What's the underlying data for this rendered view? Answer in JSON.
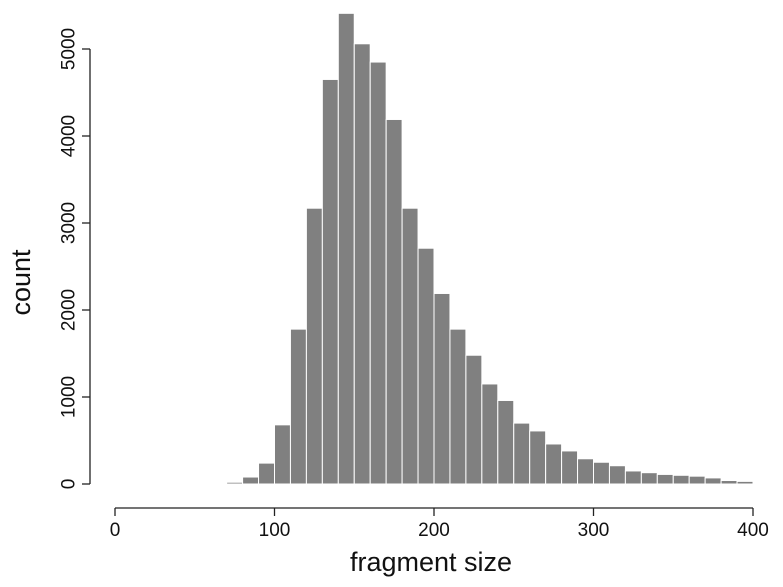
{
  "chart_data": {
    "type": "bar",
    "title": "",
    "xlabel": "fragment size",
    "ylabel": "count",
    "xlim": [
      0,
      400
    ],
    "ylim": [
      0,
      5000
    ],
    "x_ticks": [
      "0",
      "100",
      "200",
      "300",
      "400"
    ],
    "y_ticks": [
      "0",
      "1000",
      "2000",
      "3000",
      "4000",
      "5000"
    ],
    "grid": false,
    "legend": "none",
    "bar_color": "#808080",
    "bin_width": 10,
    "bins": [
      {
        "x0": 60,
        "x1": 70,
        "count": 5
      },
      {
        "x0": 70,
        "x1": 80,
        "count": 20
      },
      {
        "x0": 80,
        "x1": 90,
        "count": 80
      },
      {
        "x0": 90,
        "x1": 100,
        "count": 240
      },
      {
        "x0": 100,
        "x1": 110,
        "count": 680
      },
      {
        "x0": 110,
        "x1": 120,
        "count": 1780
      },
      {
        "x0": 120,
        "x1": 130,
        "count": 3170
      },
      {
        "x0": 130,
        "x1": 140,
        "count": 4650
      },
      {
        "x0": 140,
        "x1": 150,
        "count": 5410
      },
      {
        "x0": 150,
        "x1": 160,
        "count": 5060
      },
      {
        "x0": 160,
        "x1": 170,
        "count": 4850
      },
      {
        "x0": 170,
        "x1": 180,
        "count": 4190
      },
      {
        "x0": 180,
        "x1": 190,
        "count": 3170
      },
      {
        "x0": 190,
        "x1": 200,
        "count": 2710
      },
      {
        "x0": 200,
        "x1": 210,
        "count": 2190
      },
      {
        "x0": 210,
        "x1": 220,
        "count": 1780
      },
      {
        "x0": 220,
        "x1": 230,
        "count": 1480
      },
      {
        "x0": 230,
        "x1": 240,
        "count": 1150
      },
      {
        "x0": 240,
        "x1": 250,
        "count": 960
      },
      {
        "x0": 250,
        "x1": 260,
        "count": 700
      },
      {
        "x0": 260,
        "x1": 270,
        "count": 610
      },
      {
        "x0": 270,
        "x1": 280,
        "count": 460
      },
      {
        "x0": 280,
        "x1": 290,
        "count": 380
      },
      {
        "x0": 290,
        "x1": 300,
        "count": 290
      },
      {
        "x0": 300,
        "x1": 310,
        "count": 250
      },
      {
        "x0": 310,
        "x1": 320,
        "count": 210
      },
      {
        "x0": 320,
        "x1": 330,
        "count": 150
      },
      {
        "x0": 330,
        "x1": 340,
        "count": 130
      },
      {
        "x0": 340,
        "x1": 350,
        "count": 110
      },
      {
        "x0": 350,
        "x1": 360,
        "count": 100
      },
      {
        "x0": 360,
        "x1": 370,
        "count": 90
      },
      {
        "x0": 370,
        "x1": 380,
        "count": 70
      },
      {
        "x0": 380,
        "x1": 390,
        "count": 40
      },
      {
        "x0": 390,
        "x1": 400,
        "count": 30
      }
    ]
  }
}
